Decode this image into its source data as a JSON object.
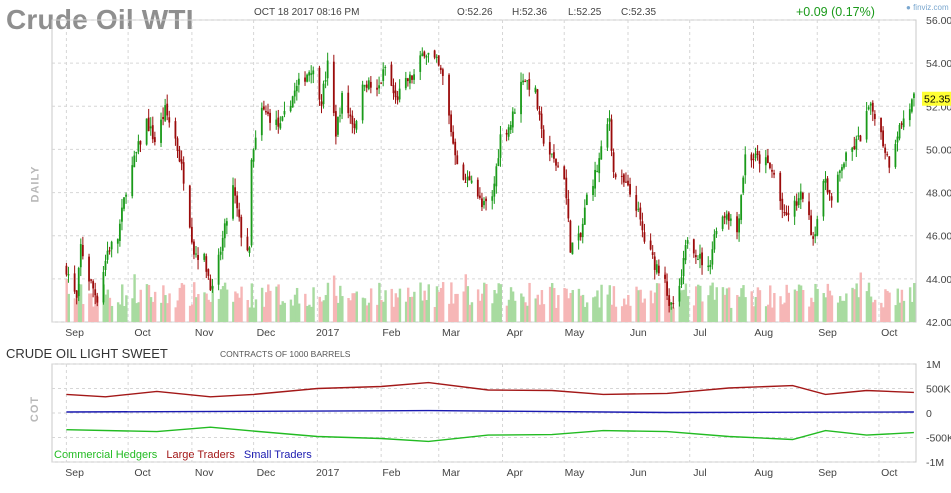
{
  "header": {
    "title": "Crude Oil WTI",
    "datetime": "OCT 18 2017 08:16 PM",
    "open": "O:52.26",
    "high": "H:52.36",
    "low": "L:52.25",
    "close": "C:52.35",
    "change": "+0.09 (0.17%)",
    "brand": "finviz.com",
    "current_price_label": "52.35"
  },
  "labels": {
    "daily": "DAILY",
    "cot": "COT",
    "cot_title": "CRUDE OIL LIGHT SWEET",
    "cot_subtitle": "CONTRACTS OF 1000 BARRELS"
  },
  "legend": {
    "commercial": "Commercial Hedgers",
    "large": "Large Traders",
    "small": "Small Traders"
  },
  "colors": {
    "up": "#1a9a1a",
    "down": "#9b0b0b",
    "volume_up": "#a8dba0",
    "volume_down": "#f6b6b6",
    "commercial": "#22bb22",
    "large": "#a31818",
    "small": "#1a1ab0",
    "price_tag": "#ffff33",
    "grid": "#d6d6d6"
  },
  "chart_data": [
    {
      "type": "candlestick",
      "title": "Crude Oil WTI",
      "x_ticks": [
        "Sep",
        "Oct",
        "Nov",
        "Dec",
        "2017",
        "Feb",
        "Mar",
        "Apr",
        "May",
        "Jun",
        "Jul",
        "Aug",
        "Sep",
        "Oct"
      ],
      "y_ticks": [
        "56.00",
        "54.00",
        "52.00",
        "50.00",
        "48.00",
        "46.00",
        "44.00",
        "42.00"
      ],
      "ylim": [
        42,
        56
      ],
      "last_price": 52.35,
      "grid": true,
      "daily_close_path": [
        [
          "2016-09-01",
          44.5
        ],
        [
          "2016-09-06",
          43.0
        ],
        [
          "2016-09-08",
          45.5
        ],
        [
          "2016-09-12",
          44.0
        ],
        [
          "2016-09-16",
          43.1
        ],
        [
          "2016-09-21",
          45.3
        ],
        [
          "2016-09-26",
          45.9
        ],
        [
          "2016-09-30",
          48.2
        ],
        [
          "2016-10-05",
          49.8
        ],
        [
          "2016-10-10",
          51.3
        ],
        [
          "2016-10-14",
          50.4
        ],
        [
          "2016-10-19",
          51.8
        ],
        [
          "2016-10-24",
          50.5
        ],
        [
          "2016-10-28",
          48.7
        ],
        [
          "2016-11-02",
          45.3
        ],
        [
          "2016-11-07",
          44.9
        ],
        [
          "2016-11-11",
          43.4
        ],
        [
          "2016-11-16",
          45.8
        ],
        [
          "2016-11-21",
          48.2
        ],
        [
          "2016-11-25",
          46.1
        ],
        [
          "2016-11-29",
          45.2
        ],
        [
          "2016-11-30",
          49.4
        ],
        [
          "2016-12-05",
          51.8
        ],
        [
          "2016-12-09",
          51.5
        ],
        [
          "2016-12-14",
          51.0
        ],
        [
          "2016-12-19",
          52.3
        ],
        [
          "2016-12-23",
          53.0
        ],
        [
          "2016-12-29",
          53.8
        ],
        [
          "2017-01-03",
          52.3
        ],
        [
          "2017-01-06",
          53.9
        ],
        [
          "2017-01-10",
          50.8
        ],
        [
          "2017-01-13",
          52.4
        ],
        [
          "2017-01-19",
          51.1
        ],
        [
          "2017-01-24",
          53.2
        ],
        [
          "2017-01-30",
          52.6
        ],
        [
          "2017-02-03",
          53.8
        ],
        [
          "2017-02-08",
          52.3
        ],
        [
          "2017-02-14",
          53.2
        ],
        [
          "2017-02-17",
          53.4
        ],
        [
          "2017-02-22",
          54.6
        ],
        [
          "2017-02-28",
          54.0
        ],
        [
          "2017-03-03",
          53.3
        ],
        [
          "2017-03-08",
          50.3
        ],
        [
          "2017-03-13",
          48.4
        ],
        [
          "2017-03-17",
          48.8
        ],
        [
          "2017-03-22",
          47.3
        ],
        [
          "2017-03-27",
          47.7
        ],
        [
          "2017-03-31",
          50.6
        ],
        [
          "2017-04-05",
          51.2
        ],
        [
          "2017-04-11",
          53.4
        ],
        [
          "2017-04-17",
          52.6
        ],
        [
          "2017-04-20",
          50.7
        ],
        [
          "2017-04-25",
          49.6
        ],
        [
          "2017-05-01",
          48.8
        ],
        [
          "2017-05-04",
          45.5
        ],
        [
          "2017-05-09",
          45.9
        ],
        [
          "2017-05-12",
          47.8
        ],
        [
          "2017-05-17",
          49.1
        ],
        [
          "2017-05-23",
          51.5
        ],
        [
          "2017-05-25",
          48.9
        ],
        [
          "2017-05-31",
          48.3
        ],
        [
          "2017-06-05",
          47.4
        ],
        [
          "2017-06-09",
          45.8
        ],
        [
          "2017-06-14",
          44.7
        ],
        [
          "2017-06-19",
          44.2
        ],
        [
          "2017-06-21",
          42.5
        ],
        [
          "2017-06-26",
          43.4
        ],
        [
          "2017-06-30",
          46.0
        ],
        [
          "2017-07-05",
          45.1
        ],
        [
          "2017-07-10",
          44.4
        ],
        [
          "2017-07-14",
          46.5
        ],
        [
          "2017-07-19",
          47.1
        ],
        [
          "2017-07-24",
          46.2
        ],
        [
          "2017-07-28",
          49.7
        ],
        [
          "2017-08-02",
          49.6
        ],
        [
          "2017-08-07",
          49.4
        ],
        [
          "2017-08-11",
          48.8
        ],
        [
          "2017-08-16",
          46.8
        ],
        [
          "2017-08-21",
          47.4
        ],
        [
          "2017-08-25",
          47.9
        ],
        [
          "2017-08-30",
          45.9
        ],
        [
          "2017-09-05",
          48.7
        ],
        [
          "2017-09-08",
          47.5
        ],
        [
          "2017-09-13",
          49.3
        ],
        [
          "2017-09-18",
          50.0
        ],
        [
          "2017-09-22",
          50.6
        ],
        [
          "2017-09-26",
          51.9
        ],
        [
          "2017-09-29",
          51.7
        ],
        [
          "2017-10-04",
          50.0
        ],
        [
          "2017-10-06",
          49.4
        ],
        [
          "2017-10-10",
          50.8
        ],
        [
          "2017-10-13",
          51.4
        ],
        [
          "2017-10-18",
          52.35
        ]
      ]
    },
    {
      "type": "line",
      "title": "CRUDE OIL LIGHT SWEET",
      "subtitle": "CONTRACTS OF 1000 BARRELS",
      "y_ticks": [
        "1M",
        "500K",
        "0",
        "-500K",
        "-1M"
      ],
      "ylim": [
        -1000000,
        1000000
      ],
      "x_ticks": [
        "Sep",
        "Oct",
        "Nov",
        "Dec",
        "2017",
        "Feb",
        "Mar",
        "Apr",
        "May",
        "Jun",
        "Jul",
        "Aug",
        "Sep",
        "Oct"
      ],
      "series": [
        {
          "name": "Large Traders",
          "values": [
            [
              "2016-09-01",
              380000
            ],
            [
              "2016-09-20",
              330000
            ],
            [
              "2016-10-15",
              440000
            ],
            [
              "2016-11-10",
              330000
            ],
            [
              "2016-12-01",
              380000
            ],
            [
              "2017-01-01",
              500000
            ],
            [
              "2017-02-01",
              540000
            ],
            [
              "2017-02-24",
              620000
            ],
            [
              "2017-03-25",
              470000
            ],
            [
              "2017-04-25",
              460000
            ],
            [
              "2017-05-20",
              380000
            ],
            [
              "2017-06-20",
              400000
            ],
            [
              "2017-07-20",
              510000
            ],
            [
              "2017-08-20",
              560000
            ],
            [
              "2017-09-05",
              380000
            ],
            [
              "2017-09-25",
              460000
            ],
            [
              "2017-10-18",
              420000
            ]
          ]
        },
        {
          "name": "Small Traders",
          "values": [
            [
              "2016-09-01",
              20000
            ],
            [
              "2017-02-24",
              50000
            ],
            [
              "2017-06-20",
              10000
            ],
            [
              "2017-10-18",
              20000
            ]
          ]
        },
        {
          "name": "Commercial Hedgers",
          "values": [
            [
              "2016-09-01",
              -340000
            ],
            [
              "2016-10-15",
              -380000
            ],
            [
              "2016-11-10",
              -290000
            ],
            [
              "2016-12-01",
              -370000
            ],
            [
              "2017-01-01",
              -480000
            ],
            [
              "2017-02-01",
              -520000
            ],
            [
              "2017-02-24",
              -580000
            ],
            [
              "2017-03-25",
              -450000
            ],
            [
              "2017-04-25",
              -440000
            ],
            [
              "2017-05-20",
              -360000
            ],
            [
              "2017-06-20",
              -380000
            ],
            [
              "2017-07-20",
              -480000
            ],
            [
              "2017-08-20",
              -540000
            ],
            [
              "2017-09-05",
              -360000
            ],
            [
              "2017-09-25",
              -450000
            ],
            [
              "2017-10-18",
              -400000
            ]
          ]
        }
      ]
    }
  ]
}
